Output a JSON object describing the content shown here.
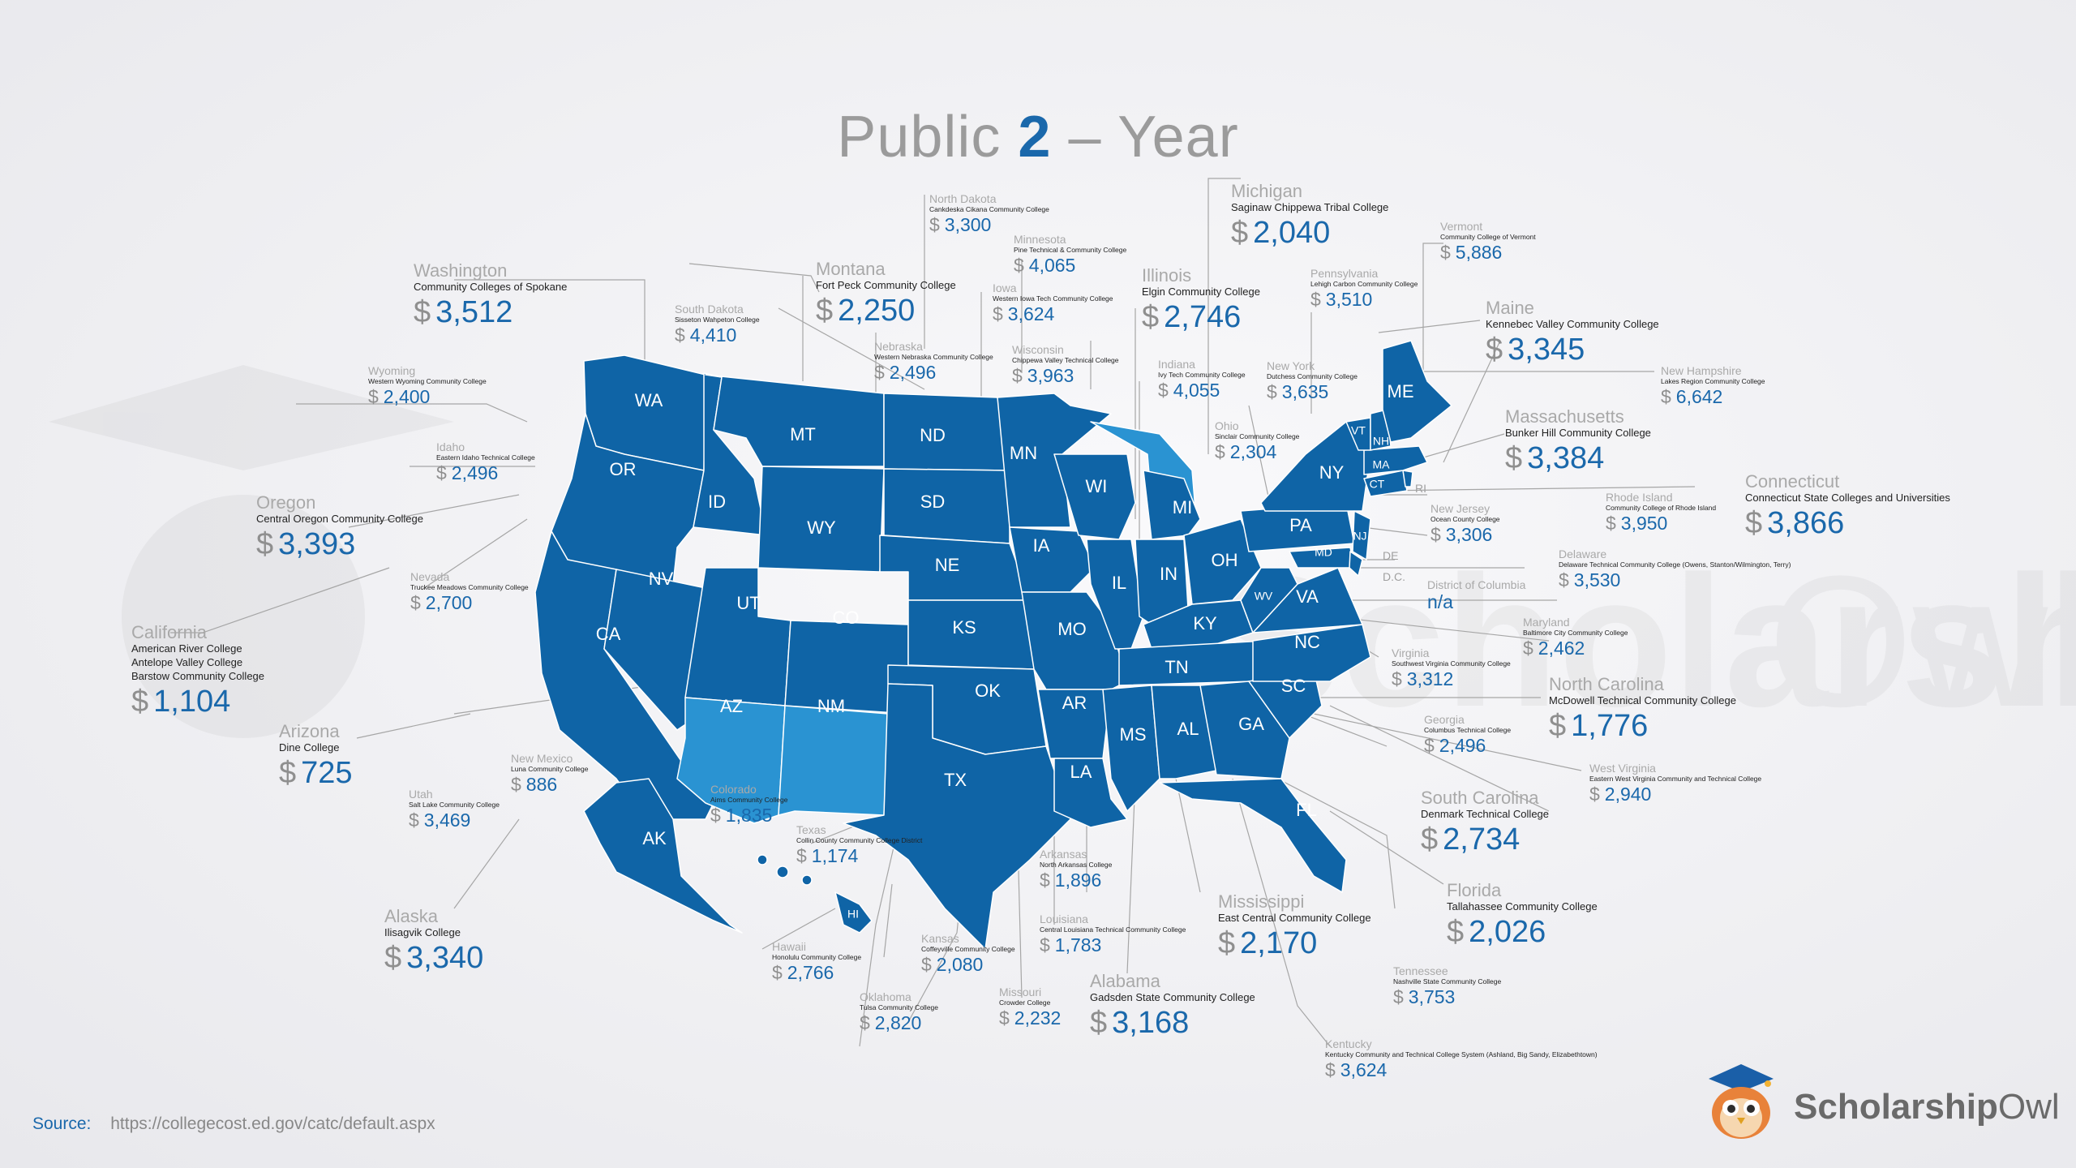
{
  "title": {
    "pre": "Public ",
    "num": "2",
    "post": " – Year"
  },
  "currency": "$",
  "colors": {
    "state": "#0f64a6",
    "highlight": "#2a93d2",
    "border": "#ffffff",
    "accent": "#1a68ab",
    "leader": "#a6a6a6"
  },
  "states_big": {
    "washington": {
      "state": "Washington",
      "colleges": [
        "Community Colleges of Spokane"
      ],
      "amount": "3,512"
    },
    "oregon": {
      "state": "Oregon",
      "colleges": [
        "Central Oregon Community College"
      ],
      "amount": "3,393"
    },
    "california": {
      "state": "California",
      "colleges": [
        "American River College",
        "Antelope Valley College",
        "Barstow Community College"
      ],
      "amount": "1,104"
    },
    "arizona": {
      "state": "Arizona",
      "colleges": [
        "Dine College"
      ],
      "amount": "725"
    },
    "alaska": {
      "state": "Alaska",
      "colleges": [
        "Ilisagvik College"
      ],
      "amount": "3,340"
    },
    "montana": {
      "state": "Montana",
      "colleges": [
        "Fort Peck Community College"
      ],
      "amount": "2,250"
    },
    "michigan": {
      "state": "Michigan",
      "colleges": [
        "Saginaw Chippewa Tribal College"
      ],
      "amount": "2,040"
    },
    "illinois": {
      "state": "Illinois",
      "colleges": [
        "Elgin Community College"
      ],
      "amount": "2,746"
    },
    "maine": {
      "state": "Maine",
      "colleges": [
        "Kennebec Valley Community College"
      ],
      "amount": "3,345"
    },
    "massachusetts": {
      "state": "Massachusetts",
      "colleges": [
        "Bunker Hill Community College"
      ],
      "amount": "3,384"
    },
    "connecticut": {
      "state": "Connecticut",
      "colleges": [
        "Connecticut State Colleges and Universities"
      ],
      "amount": "3,866"
    },
    "north_carolina": {
      "state": "North Carolina",
      "colleges": [
        "McDowell Technical Community College"
      ],
      "amount": "1,776"
    },
    "south_carolina": {
      "state": "South Carolina",
      "colleges": [
        "Denmark Technical College"
      ],
      "amount": "2,734"
    },
    "florida": {
      "state": "Florida",
      "colleges": [
        "Tallahassee Community College"
      ],
      "amount": "2,026"
    },
    "mississippi": {
      "state": "Mississippi",
      "colleges": [
        "East Central Community College"
      ],
      "amount": "2,170"
    },
    "alabama": {
      "state": "Alabama",
      "colleges": [
        "Gadsden State Community College"
      ],
      "amount": "3,168"
    }
  },
  "states_small": {
    "north_dakota": {
      "state": "North Dakota",
      "college": "Cankdeska Cikana Community College",
      "amount": "3,300"
    },
    "minnesota": {
      "state": "Minnesota",
      "college": "Pine Technical & Community College",
      "amount": "4,065"
    },
    "iowa": {
      "state": "Iowa",
      "college": "Western Iowa Tech Community College",
      "amount": "3,624"
    },
    "south_dakota": {
      "state": "South Dakota",
      "college": "Sisseton Wahpeton College",
      "amount": "4,410"
    },
    "nebraska": {
      "state": "Nebraska",
      "college": "Western Nebraska Community College",
      "amount": "2,496"
    },
    "wisconsin": {
      "state": "Wisconsin",
      "college": "Chippewa Valley Technical College",
      "amount": "3,963"
    },
    "wyoming": {
      "state": "Wyoming",
      "college": "Western Wyoming Community College",
      "amount": "2,400"
    },
    "idaho": {
      "state": "Idaho",
      "college": "Eastern Idaho Technical College",
      "amount": "2,496"
    },
    "nevada": {
      "state": "Nevada",
      "college": "Truckee Meadows Community College",
      "amount": "2,700"
    },
    "indiana": {
      "state": "Indiana",
      "college": "Ivy Tech Community College",
      "amount": "4,055"
    },
    "ohio": {
      "state": "Ohio",
      "college": "Sinclair Community College",
      "amount": "2,304"
    },
    "new_york": {
      "state": "New York",
      "college": "Dutchess Community College",
      "amount": "3,635"
    },
    "pennsylvania": {
      "state": "Pennsylvania",
      "college": "Lehigh Carbon Community College",
      "amount": "3,510"
    },
    "vermont": {
      "state": "Vermont",
      "college": "Community College of Vermont",
      "amount": "5,886"
    },
    "new_hampshire": {
      "state": "New Hampshire",
      "college": "Lakes Region Community College",
      "amount": "6,642"
    },
    "new_jersey": {
      "state": "New Jersey",
      "college": "Ocean County College",
      "amount": "3,306"
    },
    "rhode_island": {
      "state": "Rhode Island",
      "college": "Community College of Rhode Island",
      "amount": "3,950"
    },
    "delaware": {
      "state": "Delaware",
      "college": "Delaware Technical Community College (Owens, Stanton/Wilmington, Terry)",
      "amount": "3,530"
    },
    "district_of_columbia": {
      "state": "District of Columbia",
      "college": "",
      "amount": "n/a"
    },
    "maryland": {
      "state": "Maryland",
      "college": "Baltimore City Community College",
      "amount": "2,462"
    },
    "virginia": {
      "state": "Virginia",
      "college": "Southwest Virginia Community College",
      "amount": "3,312"
    },
    "georgia": {
      "state": "Georgia",
      "college": "Columbus Technical College",
      "amount": "2,496"
    },
    "west_virginia": {
      "state": "West Virginia",
      "college": "Eastern West Virginia Community and Technical College",
      "amount": "2,940"
    },
    "tennessee": {
      "state": "Tennessee",
      "college": "Nashville State Community College",
      "amount": "3,753"
    },
    "kentucky": {
      "state": "Kentucky",
      "college": "Kentucky Community and Technical College System (Ashland, Big Sandy, Elizabethtown)",
      "amount": "3,624"
    },
    "utah": {
      "state": "Utah",
      "college": "Salt Lake Community College",
      "amount": "3,469"
    },
    "new_mexico": {
      "state": "New Mexico",
      "college": "Luna Community College",
      "amount": "886"
    },
    "colorado": {
      "state": "Colorado",
      "college": "Aims Community College",
      "amount": "1,835"
    },
    "texas": {
      "state": "Texas",
      "college": "Collin County Community College District",
      "amount": "1,174"
    },
    "hawaii": {
      "state": "Hawaii",
      "college": "Honolulu Community College",
      "amount": "2,766"
    },
    "oklahoma": {
      "state": "Oklahoma",
      "college": "Tulsa Community College",
      "amount": "2,820"
    },
    "kansas": {
      "state": "Kansas",
      "college": "Coffeyville Community College",
      "amount": "2,080"
    },
    "missouri": {
      "state": "Missouri",
      "college": "Crowder College",
      "amount": "2,232"
    },
    "arkansas": {
      "state": "Arkansas",
      "college": "North Arkansas College",
      "amount": "1,896"
    },
    "louisiana": {
      "state": "Louisiana",
      "college": "Central Louisiana Technical Community College",
      "amount": "1,783"
    }
  },
  "state_abbrs": {
    "WA": "WA",
    "OR": "OR",
    "CA": "CA",
    "ID": "ID",
    "NV": "NV",
    "MT": "MT",
    "WY": "WY",
    "UT": "UT",
    "AZ": "AZ",
    "CO": "CO",
    "NM": "NM",
    "ND": "ND",
    "SD": "SD",
    "NE": "NE",
    "KS": "KS",
    "OK": "OK",
    "TX": "TX",
    "MN": "MN",
    "IA": "IA",
    "MO": "MO",
    "AR": "AR",
    "LA": "LA",
    "WI": "WI",
    "IL": "IL",
    "MI": "MI",
    "IN": "IN",
    "OH": "OH",
    "KY": "KY",
    "TN": "TN",
    "MS": "MS",
    "AL": "AL",
    "GA": "GA",
    "FL": "FL",
    "SC": "SC",
    "NC": "NC",
    "VA": "VA",
    "WV": "WV",
    "PA": "PA",
    "NY": "NY",
    "VT": "VT",
    "NH": "NH",
    "ME": "ME",
    "MA": "MA",
    "CT": "CT",
    "RI": "RI",
    "NJ": "NJ",
    "DE": "DE",
    "MD": "MD",
    "DC": "D.C.",
    "AK": "AK",
    "HI": "HI"
  },
  "source": {
    "label": "Source:",
    "url": "https://collegecost.ed.gov/catc/default.aspx"
  },
  "brand": {
    "name_bold": "Scholarship",
    "name_light": "Owl",
    "logo": "owl-mascot-icon",
    "watermark": "ScholarshipOwl"
  }
}
